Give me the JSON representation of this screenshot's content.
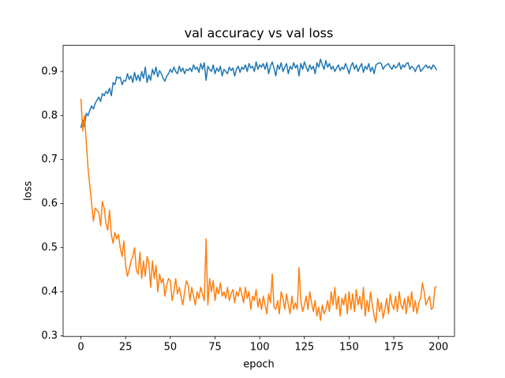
{
  "chart_data": {
    "type": "line",
    "title": "val accuracy vs val loss",
    "xlabel": "epoch",
    "ylabel": "loss",
    "x": [
      0,
      1,
      2,
      3,
      4,
      5,
      6,
      7,
      8,
      9,
      10,
      11,
      12,
      13,
      14,
      15,
      16,
      17,
      18,
      19,
      20,
      21,
      22,
      23,
      24,
      25,
      26,
      27,
      28,
      29,
      30,
      31,
      32,
      33,
      34,
      35,
      36,
      37,
      38,
      39,
      40,
      41,
      42,
      43,
      44,
      45,
      46,
      47,
      48,
      49,
      50,
      51,
      52,
      53,
      54,
      55,
      56,
      57,
      58,
      59,
      60,
      61,
      62,
      63,
      64,
      65,
      66,
      67,
      68,
      69,
      70,
      71,
      72,
      73,
      74,
      75,
      76,
      77,
      78,
      79,
      80,
      81,
      82,
      83,
      84,
      85,
      86,
      87,
      88,
      89,
      90,
      91,
      92,
      93,
      94,
      95,
      96,
      97,
      98,
      99,
      100,
      101,
      102,
      103,
      104,
      105,
      106,
      107,
      108,
      109,
      110,
      111,
      112,
      113,
      114,
      115,
      116,
      117,
      118,
      119,
      120,
      121,
      122,
      123,
      124,
      125,
      126,
      127,
      128,
      129,
      130,
      131,
      132,
      133,
      134,
      135,
      136,
      137,
      138,
      139,
      140,
      141,
      142,
      143,
      144,
      145,
      146,
      147,
      148,
      149,
      150,
      151,
      152,
      153,
      154,
      155,
      156,
      157,
      158,
      159,
      160,
      161,
      162,
      163,
      164,
      165,
      166,
      167,
      168,
      169,
      170,
      171,
      172,
      173,
      174,
      175,
      176,
      177,
      178,
      179,
      180,
      181,
      182,
      183,
      184,
      185,
      186,
      187,
      188,
      189,
      190,
      191,
      192,
      193,
      194,
      195,
      196,
      197,
      198,
      199
    ],
    "series": [
      {
        "color": "#1f77b4",
        "values": [
          0.772,
          0.79,
          0.775,
          0.805,
          0.8,
          0.812,
          0.822,
          0.815,
          0.828,
          0.835,
          0.842,
          0.832,
          0.85,
          0.845,
          0.855,
          0.85,
          0.862,
          0.845,
          0.875,
          0.87,
          0.888,
          0.885,
          0.887,
          0.87,
          0.88,
          0.878,
          0.895,
          0.882,
          0.89,
          0.875,
          0.898,
          0.88,
          0.892,
          0.878,
          0.9,
          0.885,
          0.91,
          0.875,
          0.892,
          0.88,
          0.905,
          0.893,
          0.91,
          0.888,
          0.902,
          0.895,
          0.884,
          0.878,
          0.89,
          0.895,
          0.905,
          0.898,
          0.91,
          0.9,
          0.895,
          0.912,
          0.9,
          0.908,
          0.895,
          0.905,
          0.902,
          0.908,
          0.9,
          0.915,
          0.905,
          0.91,
          0.898,
          0.918,
          0.905,
          0.92,
          0.88,
          0.912,
          0.905,
          0.9,
          0.915,
          0.895,
          0.908,
          0.9,
          0.912,
          0.89,
          0.905,
          0.9,
          0.895,
          0.91,
          0.902,
          0.908,
          0.89,
          0.905,
          0.912,
          0.898,
          0.91,
          0.905,
          0.915,
          0.9,
          0.918,
          0.908,
          0.912,
          0.9,
          0.922,
          0.905,
          0.915,
          0.91,
          0.918,
          0.905,
          0.92,
          0.895,
          0.912,
          0.922,
          0.908,
          0.89,
          0.915,
          0.905,
          0.92,
          0.9,
          0.91,
          0.918,
          0.895,
          0.912,
          0.905,
          0.92,
          0.908,
          0.915,
          0.89,
          0.918,
          0.905,
          0.922,
          0.91,
          0.9,
          0.915,
          0.905,
          0.912,
          0.895,
          0.92,
          0.91,
          0.928,
          0.915,
          0.905,
          0.925,
          0.91,
          0.918,
          0.905,
          0.912,
          0.9,
          0.908,
          0.915,
          0.902,
          0.91,
          0.905,
          0.918,
          0.908,
          0.895,
          0.912,
          0.92,
          0.905,
          0.915,
          0.9,
          0.91,
          0.918,
          0.898,
          0.912,
          0.905,
          0.918,
          0.9,
          0.91,
          0.895,
          0.915,
          0.918,
          0.92,
          0.918,
          0.905,
          0.912,
          0.915,
          0.918,
          0.91,
          0.905,
          0.915,
          0.908,
          0.912,
          0.92,
          0.905,
          0.915,
          0.91,
          0.918,
          0.92,
          0.905,
          0.912,
          0.908,
          0.9,
          0.91,
          0.915,
          0.9,
          0.905,
          0.91,
          0.915,
          0.908,
          0.912,
          0.905,
          0.915,
          0.91,
          0.903
        ]
      },
      {
        "color": "#ff7f0e",
        "values": [
          0.838,
          0.765,
          0.8,
          0.74,
          0.68,
          0.64,
          0.6,
          0.56,
          0.59,
          0.585,
          0.58,
          0.55,
          0.605,
          0.59,
          0.555,
          0.54,
          0.585,
          0.53,
          0.51,
          0.535,
          0.52,
          0.53,
          0.5,
          0.48,
          0.515,
          0.46,
          0.435,
          0.45,
          0.47,
          0.48,
          0.5,
          0.45,
          0.44,
          0.49,
          0.43,
          0.47,
          0.435,
          0.48,
          0.465,
          0.41,
          0.47,
          0.43,
          0.46,
          0.4,
          0.44,
          0.42,
          0.43,
          0.39,
          0.415,
          0.43,
          0.425,
          0.38,
          0.4,
          0.43,
          0.395,
          0.41,
          0.39,
          0.37,
          0.4,
          0.425,
          0.415,
          0.38,
          0.41,
          0.39,
          0.37,
          0.4,
          0.385,
          0.41,
          0.395,
          0.38,
          0.52,
          0.37,
          0.43,
          0.4,
          0.425,
          0.38,
          0.41,
          0.395,
          0.42,
          0.39,
          0.4,
          0.385,
          0.41,
          0.38,
          0.395,
          0.405,
          0.375,
          0.4,
          0.39,
          0.41,
          0.395,
          0.375,
          0.41,
          0.385,
          0.4,
          0.36,
          0.39,
          0.38,
          0.405,
          0.365,
          0.385,
          0.36,
          0.39,
          0.37,
          0.35,
          0.395,
          0.375,
          0.44,
          0.365,
          0.36,
          0.38,
          0.35,
          0.4,
          0.385,
          0.36,
          0.395,
          0.37,
          0.35,
          0.39,
          0.36,
          0.375,
          0.36,
          0.455,
          0.38,
          0.355,
          0.37,
          0.39,
          0.36,
          0.4,
          0.375,
          0.355,
          0.38,
          0.345,
          0.365,
          0.335,
          0.37,
          0.35,
          0.36,
          0.38,
          0.355,
          0.4,
          0.37,
          0.41,
          0.36,
          0.39,
          0.345,
          0.385,
          0.37,
          0.395,
          0.35,
          0.4,
          0.36,
          0.395,
          0.355,
          0.405,
          0.37,
          0.39,
          0.36,
          0.41,
          0.345,
          0.38,
          0.355,
          0.4,
          0.37,
          0.345,
          0.33,
          0.385,
          0.355,
          0.375,
          0.34,
          0.36,
          0.385,
          0.35,
          0.395,
          0.37,
          0.36,
          0.39,
          0.355,
          0.4,
          0.37,
          0.36,
          0.385,
          0.35,
          0.39,
          0.365,
          0.4,
          0.355,
          0.38,
          0.35,
          0.375,
          0.385,
          0.42,
          0.4,
          0.37,
          0.38,
          0.39,
          0.36,
          0.365,
          0.41,
          0.412
        ]
      }
    ],
    "xlim": [
      -9.95,
      208.95
    ],
    "xticks": [
      0,
      25,
      50,
      75,
      100,
      125,
      150,
      175,
      200
    ],
    "ylim": [
      0.2986,
      0.9594
    ],
    "yticks": [
      0.3,
      0.4,
      0.5,
      0.6,
      0.7,
      0.8,
      0.9
    ]
  }
}
